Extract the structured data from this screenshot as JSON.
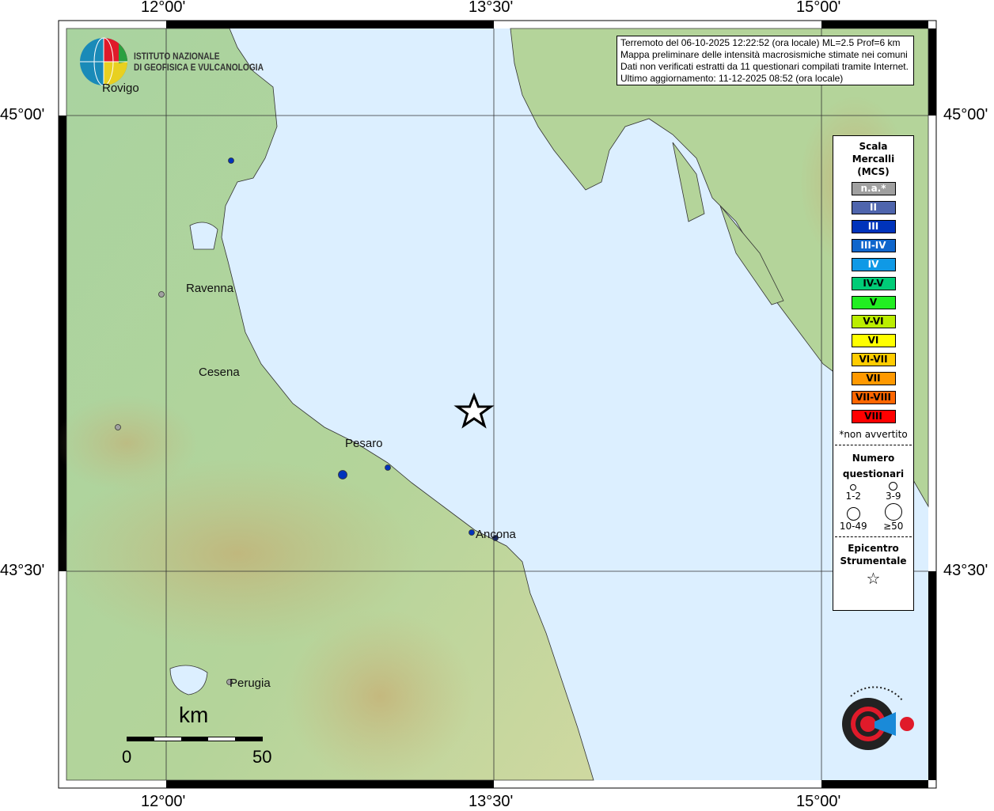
{
  "info": {
    "line1": "Terremoto del 06-10-2025 12:22:52 (ora locale) ML=2.5 Prof=6 km",
    "line2": "Mappa preliminare delle intensità macrosismiche stimate nei comuni",
    "line3": "Dati non verificati estratti da 11 questionari compilati tramite Internet.",
    "line4": "Ultimo aggiornamento: 11-12-2025 08:52 (ora locale)"
  },
  "axes": {
    "lon_ticks": [
      "12°00'",
      "13°30'",
      "15°00'"
    ],
    "lat_ticks": [
      "45°00'",
      "43°30'"
    ]
  },
  "logo_ingv": {
    "line1": "ISTITUTO NAZIONALE",
    "line2": "DI GEOFISICA E VULCANOLOGIA"
  },
  "logo_hsit": "www.haisentitoilterremoto.it",
  "legend": {
    "title": [
      "Scala",
      "Mercalli",
      "(MCS)"
    ],
    "classes": [
      {
        "label": "n.a.*",
        "color": "#a0a0a0",
        "text": "#ffffff"
      },
      {
        "label": "II",
        "color": "#4f65ad",
        "text": "#ffffff"
      },
      {
        "label": "III",
        "color": "#0033bb",
        "text": "#ffffff"
      },
      {
        "label": "III-IV",
        "color": "#0f66cc",
        "text": "#ffffff"
      },
      {
        "label": "IV",
        "color": "#0f99e6",
        "text": "#ffffff"
      },
      {
        "label": "IV-V",
        "color": "#00cc77",
        "text": "#000000"
      },
      {
        "label": "V",
        "color": "#22ee22",
        "text": "#000000"
      },
      {
        "label": "V-VI",
        "color": "#bbee00",
        "text": "#000000"
      },
      {
        "label": "VI",
        "color": "#ffff00",
        "text": "#000000"
      },
      {
        "label": "VI-VII",
        "color": "#ffcc00",
        "text": "#000000"
      },
      {
        "label": "VII",
        "color": "#ff9900",
        "text": "#000000"
      },
      {
        "label": "VII-VIII",
        "color": "#ff6600",
        "text": "#000000"
      },
      {
        "label": "VIII",
        "color": "#ff0000",
        "text": "#000000"
      }
    ],
    "note": "*non avvertito",
    "questionari_title": [
      "Numero",
      "questionari"
    ],
    "sizes": [
      "1-2",
      "3-9",
      "10-49",
      "≥50"
    ],
    "epicentre_title": [
      "Epicentro",
      "Strumentale"
    ]
  },
  "cities": [
    "Rovigo",
    "Ravenna",
    "Cesena",
    "Pesaro",
    "Ancona",
    "Perugia"
  ],
  "observations": [
    {
      "intensity": "n.a.*",
      "count": "1-2"
    },
    {
      "intensity": "n.a.*",
      "count": "1-2"
    },
    {
      "intensity": "n.a.*",
      "count": "1-2"
    },
    {
      "intensity": "III",
      "count": "1-2"
    },
    {
      "intensity": "III",
      "count": "3-9"
    },
    {
      "intensity": "III",
      "count": "1-2"
    },
    {
      "intensity": "III",
      "count": "1-2"
    },
    {
      "intensity": "II",
      "count": "1-2"
    }
  ],
  "scale_bar": {
    "unit": "km",
    "start": "0",
    "end": "50"
  },
  "colors": {
    "sea": "#dcefff",
    "land": "#a9d3a0",
    "frame": "#000000"
  }
}
